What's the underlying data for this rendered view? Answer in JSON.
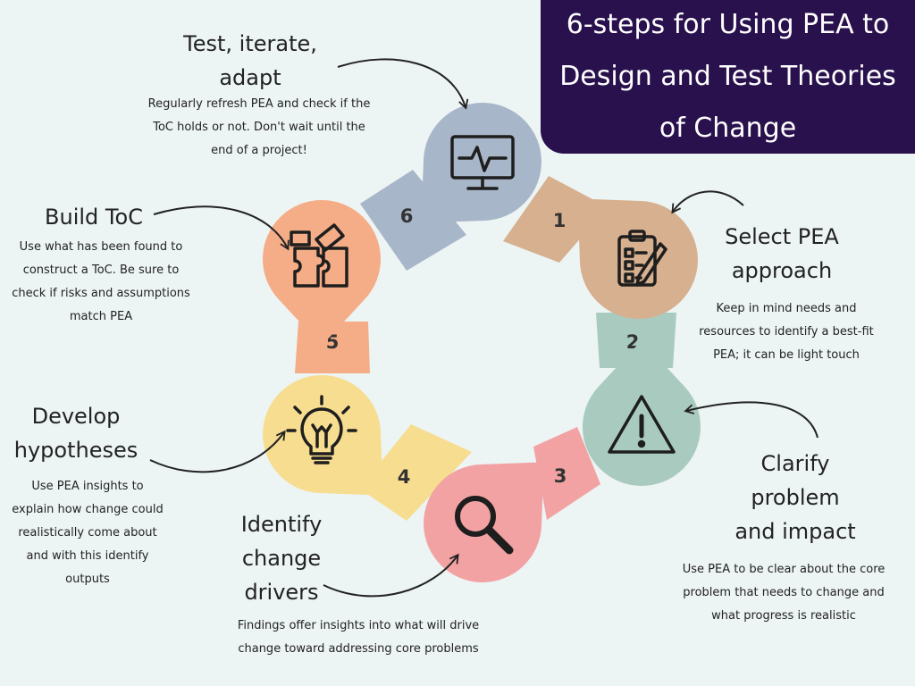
{
  "title": {
    "lines": [
      "6-steps for Using PEA to",
      "Design and Test Theories",
      "of Change"
    ]
  },
  "colors": {
    "title_bg": "#29114d",
    "background": "#edf4f4",
    "step1": "#d6b08f",
    "step2": "#a9cbbf",
    "step3": "#f2a2a3",
    "step4": "#f7dd8f",
    "step5": "#f5ad87",
    "step6": "#a8b6c9"
  },
  "steps": [
    {
      "number": "1",
      "icon": "checklist-pen-icon",
      "heading": [
        "Select PEA",
        "approach"
      ],
      "description": [
        "Keep in mind needs and",
        "resources  to identify a best-fit",
        "PEA; it can be light touch"
      ]
    },
    {
      "number": "2",
      "icon": "warning-triangle-icon",
      "heading": [
        "Clarify",
        "problem",
        "and impact"
      ],
      "description": [
        "Use PEA to be clear about the core",
        "problem that needs to change and",
        "what progress is realistic"
      ]
    },
    {
      "number": "3",
      "icon": "magnifier-icon",
      "heading": [
        "Identify",
        "change",
        "drivers"
      ],
      "description": [
        "Findings offer insights into what will drive",
        "change toward addressing core problems"
      ]
    },
    {
      "number": "4",
      "icon": "lightbulb-icon",
      "heading": [
        "Develop",
        "hypotheses"
      ],
      "description": [
        "Use PEA insights to",
        "explain  how change could",
        "realistically come about",
        "and with this identify",
        "outputs"
      ]
    },
    {
      "number": "5",
      "icon": "puzzle-icon",
      "heading": [
        "Build ToC"
      ],
      "description": [
        "Use what has been found to",
        "construct a ToC. Be sure to",
        "check if risks and assumptions",
        "match PEA"
      ]
    },
    {
      "number": "6",
      "icon": "monitor-pulse-icon",
      "heading": [
        "Test, iterate,",
        "adapt"
      ],
      "description": [
        "Regularly refresh PEA and check if the",
        "ToC holds or not. Don't wait until the",
        "end of a project!"
      ]
    }
  ]
}
